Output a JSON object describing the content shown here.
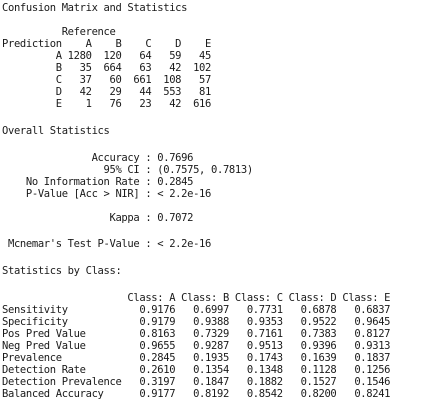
{
  "output": {
    "title": "Confusion Matrix and Statistics",
    "matrix": {
      "reference_header": "          Reference",
      "col_header": "Prediction    A    B    C    D    E",
      "rows": [
        "         A 1280  120   64   59   45",
        "         B   35  664   63   42  102",
        "         C   37   60  661  108   57",
        "         D   42   29   44  553   81",
        "         E    1   76   23   42  616"
      ]
    },
    "overall": {
      "title": "Overall Statistics",
      "lines": [
        "               Accuracy : 0.7696",
        "                 95% CI : (0.7575, 0.7813)",
        "    No Information Rate : 0.2845",
        "    P-Value [Acc > NIR] : < 2.2e-16",
        "                  Kappa : 0.7072",
        " Mcnemar's Test P-Value : < 2.2e-16"
      ]
    },
    "by_class": {
      "title": "Statistics by Class:",
      "header": "                     Class: A Class: B Class: C Class: D Class: E",
      "rows": [
        "Sensitivity            0.9176   0.6997   0.7731   0.6878   0.6837",
        "Specificity            0.9179   0.9388   0.9353   0.9522   0.9645",
        "Pos Pred Value         0.8163   0.7329   0.7161   0.7383   0.8127",
        "Neg Pred Value         0.9655   0.9287   0.9513   0.9396   0.9313",
        "Prevalence             0.2845   0.1935   0.1743   0.1639   0.1837",
        "Detection Rate         0.2610   0.1354   0.1348   0.1128   0.1256",
        "Detection Prevalence   0.3197   0.1847   0.1882   0.1527   0.1546",
        "Balanced Accuracy      0.9177   0.8192   0.8542   0.8200   0.8241"
      ]
    }
  }
}
